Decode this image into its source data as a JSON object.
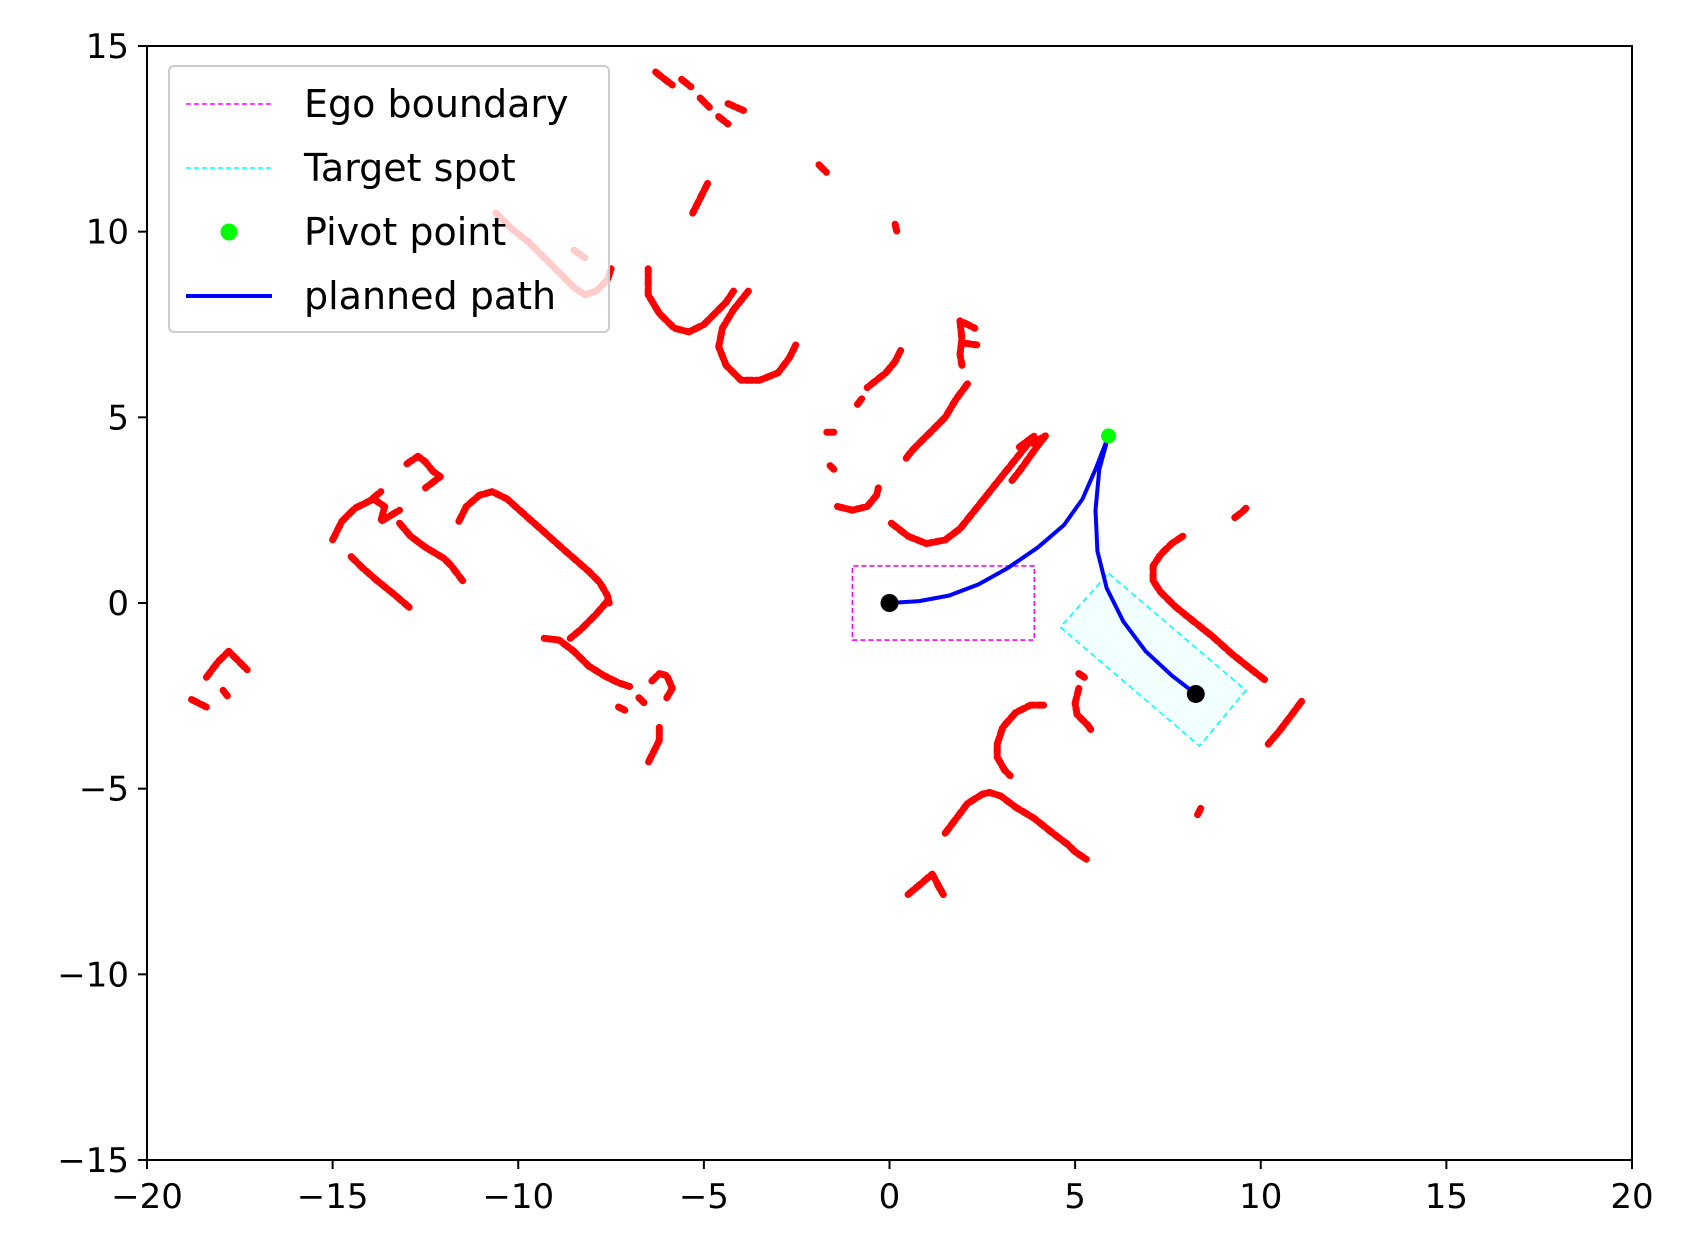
{
  "chart_data": {
    "type": "scatter",
    "title": "",
    "xlabel": "",
    "ylabel": "",
    "xlim": [
      -20,
      20
    ],
    "ylim": [
      -15,
      15
    ],
    "xticks": [
      -20,
      -15,
      -10,
      -5,
      0,
      5,
      10,
      15,
      20
    ],
    "yticks": [
      -15,
      -10,
      -5,
      0,
      5,
      10,
      15
    ],
    "xtick_labels": [
      "−20",
      "−15",
      "−10",
      "−5",
      "0",
      "5",
      "10",
      "15",
      "20"
    ],
    "ytick_labels": [
      "−15",
      "−10",
      "−5",
      "0",
      "5",
      "10",
      "15"
    ],
    "grid": false,
    "legend": {
      "position": "top-left",
      "entries": [
        {
          "key": "ego",
          "label": "Ego boundary",
          "color": "#ff00ff",
          "style": "dashed-line"
        },
        {
          "key": "target",
          "label": "Target spot",
          "color": "#00ffff",
          "style": "dashed-line"
        },
        {
          "key": "pivot",
          "label": "Pivot point",
          "color": "#00ff00",
          "style": "marker"
        },
        {
          "key": "path",
          "label": "planned path",
          "color": "#0000ff",
          "style": "solid-line"
        }
      ]
    },
    "ego_boundary": {
      "color": "#ff00ff",
      "corners": [
        [
          -1.0,
          -1.0
        ],
        [
          3.9,
          -1.0
        ],
        [
          3.9,
          1.0
        ],
        [
          -1.0,
          1.0
        ]
      ]
    },
    "target_spot": {
      "color": "#00ffff",
      "corners": [
        [
          5.9,
          0.8
        ],
        [
          9.6,
          -2.35
        ],
        [
          8.35,
          -3.85
        ],
        [
          4.6,
          -0.65
        ]
      ]
    },
    "pivot_point": {
      "x": 5.9,
      "y": 4.5,
      "color": "#00ff00"
    },
    "start_point": {
      "x": 0.0,
      "y": 0.0,
      "color": "#000000"
    },
    "end_point": {
      "x": 8.25,
      "y": -2.45,
      "color": "#000000"
    },
    "planned_path": {
      "color": "#0000ff",
      "segments": [
        [
          [
            0.0,
            0.0
          ],
          [
            0.8,
            0.05
          ],
          [
            1.6,
            0.2
          ],
          [
            2.4,
            0.5
          ],
          [
            3.2,
            0.95
          ],
          [
            4.0,
            1.5
          ],
          [
            4.7,
            2.1
          ],
          [
            5.2,
            2.8
          ],
          [
            5.55,
            3.6
          ],
          [
            5.9,
            4.5
          ]
        ],
        [
          [
            5.9,
            4.5
          ],
          [
            5.65,
            3.6
          ],
          [
            5.55,
            2.5
          ],
          [
            5.6,
            1.4
          ],
          [
            5.85,
            0.4
          ],
          [
            6.3,
            -0.5
          ],
          [
            6.9,
            -1.3
          ],
          [
            7.6,
            -1.95
          ],
          [
            8.25,
            -2.45
          ]
        ]
      ]
    },
    "obstacle_color": "#ff0000",
    "obstacles": [
      [
        [
          -6.3,
          14.3
        ],
        [
          -6.05,
          14.1
        ],
        [
          -5.85,
          13.95
        ]
      ],
      [
        [
          -5.6,
          14.1
        ],
        [
          -5.35,
          13.9
        ]
      ],
      [
        [
          -5.1,
          13.6
        ],
        [
          -4.85,
          13.35
        ]
      ],
      [
        [
          -4.6,
          13.1
        ],
        [
          -4.35,
          12.9
        ]
      ],
      [
        [
          -4.35,
          13.45
        ],
        [
          -3.9,
          13.25
        ]
      ],
      [
        [
          -1.9,
          11.8
        ],
        [
          -1.7,
          11.6
        ]
      ],
      [
        [
          -4.9,
          11.3
        ],
        [
          -5.1,
          10.9
        ],
        [
          -5.3,
          10.5
        ]
      ],
      [
        [
          0.15,
          10.2
        ],
        [
          0.2,
          10.0
        ]
      ],
      [
        [
          -10.6,
          10.5
        ],
        [
          -10.2,
          10.1
        ],
        [
          -9.7,
          9.7
        ],
        [
          -9.2,
          9.2
        ],
        [
          -8.8,
          8.8
        ],
        [
          -8.5,
          8.5
        ],
        [
          -8.2,
          8.3
        ],
        [
          -7.9,
          8.4
        ],
        [
          -7.6,
          8.7
        ],
        [
          -7.5,
          9.0
        ]
      ],
      [
        [
          -8.5,
          9.5
        ],
        [
          -8.2,
          9.3
        ]
      ],
      [
        [
          -6.5,
          9.0
        ],
        [
          -6.5,
          8.3
        ],
        [
          -6.2,
          7.8
        ],
        [
          -5.8,
          7.4
        ],
        [
          -5.4,
          7.3
        ],
        [
          -5.0,
          7.5
        ],
        [
          -4.7,
          7.8
        ],
        [
          -4.4,
          8.1
        ],
        [
          -4.2,
          8.4
        ]
      ],
      [
        [
          -3.8,
          8.4
        ],
        [
          -4.2,
          7.9
        ],
        [
          -4.5,
          7.4
        ],
        [
          -4.6,
          6.9
        ],
        [
          -4.4,
          6.4
        ],
        [
          -4.0,
          6.0
        ],
        [
          -3.5,
          6.0
        ],
        [
          -3.0,
          6.2
        ],
        [
          -2.7,
          6.6
        ],
        [
          -2.5,
          7.0
        ]
      ],
      [
        [
          1.9,
          7.6
        ],
        [
          1.95,
          7.1
        ],
        [
          1.9,
          6.7
        ],
        [
          1.95,
          6.4
        ]
      ],
      [
        [
          2.0,
          7.55
        ],
        [
          2.3,
          7.4
        ]
      ],
      [
        [
          2.0,
          7.0
        ],
        [
          2.35,
          6.95
        ]
      ],
      [
        [
          0.3,
          6.8
        ],
        [
          0.15,
          6.5
        ],
        [
          -0.1,
          6.2
        ],
        [
          -0.35,
          6.0
        ],
        [
          -0.6,
          5.8
        ]
      ],
      [
        [
          -0.75,
          5.5
        ],
        [
          -0.9,
          5.3
        ]
      ],
      [
        [
          -1.5,
          4.6
        ],
        [
          -1.75,
          4.6
        ]
      ],
      [
        [
          -1.6,
          3.7
        ],
        [
          -1.5,
          3.6
        ]
      ],
      [
        [
          -1.4,
          2.6
        ],
        [
          -1.0,
          2.5
        ],
        [
          -0.6,
          2.6
        ],
        [
          -0.35,
          2.9
        ],
        [
          -0.3,
          3.1
        ]
      ],
      [
        [
          2.1,
          5.9
        ],
        [
          1.8,
          5.5
        ],
        [
          1.5,
          5.0
        ],
        [
          1.2,
          4.7
        ],
        [
          0.9,
          4.4
        ],
        [
          0.6,
          4.1
        ],
        [
          0.45,
          3.9
        ]
      ],
      [
        [
          0.05,
          2.15
        ],
        [
          0.5,
          1.8
        ],
        [
          1.0,
          1.6
        ],
        [
          1.5,
          1.7
        ],
        [
          1.9,
          2.0
        ],
        [
          2.3,
          2.5
        ],
        [
          2.7,
          3.0
        ],
        [
          3.1,
          3.5
        ],
        [
          3.5,
          4.0
        ],
        [
          3.9,
          4.5
        ],
        [
          3.5,
          4.2
        ]
      ],
      [
        [
          3.3,
          3.3
        ],
        [
          3.5,
          3.55
        ],
        [
          3.75,
          3.9
        ],
        [
          4.0,
          4.25
        ],
        [
          4.2,
          4.5
        ],
        [
          3.85,
          4.3
        ]
      ],
      [
        [
          9.3,
          2.3
        ],
        [
          9.5,
          2.45
        ],
        [
          9.6,
          2.55
        ]
      ],
      [
        [
          7.9,
          1.8
        ],
        [
          7.6,
          1.6
        ],
        [
          7.3,
          1.3
        ],
        [
          7.1,
          1.0
        ],
        [
          7.1,
          0.6
        ],
        [
          7.3,
          0.3
        ],
        [
          7.7,
          -0.1
        ],
        [
          8.2,
          -0.5
        ],
        [
          8.7,
          -0.9
        ],
        [
          9.2,
          -1.35
        ],
        [
          9.7,
          -1.75
        ],
        [
          10.15,
          -2.1
        ]
      ],
      [
        [
          11.1,
          -2.65
        ],
        [
          10.8,
          -3.05
        ],
        [
          10.5,
          -3.45
        ],
        [
          10.2,
          -3.8
        ]
      ],
      [
        [
          8.3,
          -5.7
        ],
        [
          8.4,
          -5.5
        ]
      ],
      [
        [
          5.1,
          -2.3
        ],
        [
          5.0,
          -2.7
        ],
        [
          5.05,
          -3.0
        ],
        [
          5.35,
          -3.3
        ],
        [
          5.45,
          -3.45
        ]
      ],
      [
        [
          5.1,
          -1.9
        ],
        [
          5.25,
          -2.0
        ]
      ],
      [
        [
          4.15,
          -2.75
        ],
        [
          3.8,
          -2.75
        ],
        [
          3.4,
          -2.95
        ],
        [
          3.05,
          -3.35
        ],
        [
          2.9,
          -3.8
        ],
        [
          2.9,
          -4.15
        ],
        [
          3.1,
          -4.5
        ],
        [
          3.25,
          -4.65
        ]
      ],
      [
        [
          1.5,
          -6.2
        ],
        [
          1.8,
          -5.8
        ],
        [
          2.1,
          -5.4
        ],
        [
          2.5,
          -5.15
        ],
        [
          2.7,
          -5.1
        ],
        [
          3.0,
          -5.2
        ],
        [
          3.4,
          -5.5
        ],
        [
          3.9,
          -5.8
        ],
        [
          4.4,
          -6.2
        ],
        [
          4.8,
          -6.5
        ],
        [
          5.0,
          -6.7
        ],
        [
          5.3,
          -6.9
        ]
      ],
      [
        [
          0.5,
          -7.85
        ],
        [
          0.8,
          -7.6
        ],
        [
          1.15,
          -7.3
        ],
        [
          1.45,
          -7.85
        ],
        [
          1.3,
          -7.6
        ]
      ],
      [
        [
          -15.0,
          1.7
        ],
        [
          -14.75,
          2.2
        ],
        [
          -14.4,
          2.55
        ],
        [
          -14.0,
          2.75
        ],
        [
          -13.7,
          3.0
        ]
      ],
      [
        [
          -13.9,
          2.8
        ],
        [
          -13.6,
          2.6
        ],
        [
          -13.7,
          2.2
        ],
        [
          -13.2,
          2.5
        ]
      ],
      [
        [
          -14.5,
          1.25
        ],
        [
          -14.2,
          0.95
        ],
        [
          -13.8,
          0.6
        ],
        [
          -13.3,
          0.2
        ],
        [
          -12.9,
          -0.15
        ]
      ],
      [
        [
          -13.2,
          2.15
        ],
        [
          -12.9,
          1.8
        ],
        [
          -12.5,
          1.5
        ],
        [
          -12.0,
          1.2
        ],
        [
          -11.8,
          1.0
        ],
        [
          -11.5,
          0.6
        ]
      ],
      [
        [
          -13.0,
          3.75
        ],
        [
          -12.7,
          3.95
        ],
        [
          -12.5,
          3.8
        ],
        [
          -12.3,
          3.55
        ],
        [
          -12.1,
          3.4
        ],
        [
          -12.3,
          3.25
        ],
        [
          -12.5,
          3.1
        ]
      ],
      [
        [
          -11.6,
          2.2
        ],
        [
          -11.4,
          2.6
        ],
        [
          -11.05,
          2.9
        ],
        [
          -10.7,
          3.0
        ],
        [
          -10.3,
          2.8
        ],
        [
          -9.85,
          2.4
        ],
        [
          -9.4,
          2.0
        ],
        [
          -8.9,
          1.55
        ],
        [
          -8.5,
          1.2
        ],
        [
          -8.1,
          0.85
        ],
        [
          -7.8,
          0.55
        ],
        [
          -7.6,
          0.2
        ],
        [
          -7.55,
          0.0
        ]
      ],
      [
        [
          -7.6,
          0.05
        ],
        [
          -7.9,
          -0.3
        ],
        [
          -8.3,
          -0.7
        ],
        [
          -8.6,
          -0.95
        ]
      ],
      [
        [
          -9.3,
          -0.95
        ],
        [
          -8.9,
          -1.0
        ],
        [
          -8.5,
          -1.3
        ],
        [
          -8.1,
          -1.7
        ],
        [
          -7.7,
          -1.95
        ],
        [
          -7.3,
          -2.15
        ],
        [
          -7.0,
          -2.25
        ]
      ],
      [
        [
          -6.4,
          -2.1
        ],
        [
          -6.2,
          -1.9
        ],
        [
          -6.0,
          -1.95
        ],
        [
          -5.85,
          -2.3
        ],
        [
          -6.0,
          -2.55
        ]
      ],
      [
        [
          -7.3,
          -2.8
        ],
        [
          -7.1,
          -2.9
        ]
      ],
      [
        [
          -6.75,
          -2.55
        ],
        [
          -6.6,
          -2.7
        ]
      ],
      [
        [
          -6.2,
          -3.35
        ],
        [
          -6.2,
          -3.7
        ],
        [
          -6.4,
          -4.1
        ],
        [
          -6.5,
          -4.3
        ]
      ],
      [
        [
          -18.8,
          -2.6
        ],
        [
          -18.4,
          -2.8
        ]
      ],
      [
        [
          -18.4,
          -2.0
        ],
        [
          -18.1,
          -1.6
        ],
        [
          -17.8,
          -1.3
        ],
        [
          -17.55,
          -1.55
        ],
        [
          -17.3,
          -1.8
        ]
      ],
      [
        [
          -17.95,
          -2.35
        ],
        [
          -17.8,
          -2.55
        ]
      ]
    ]
  }
}
